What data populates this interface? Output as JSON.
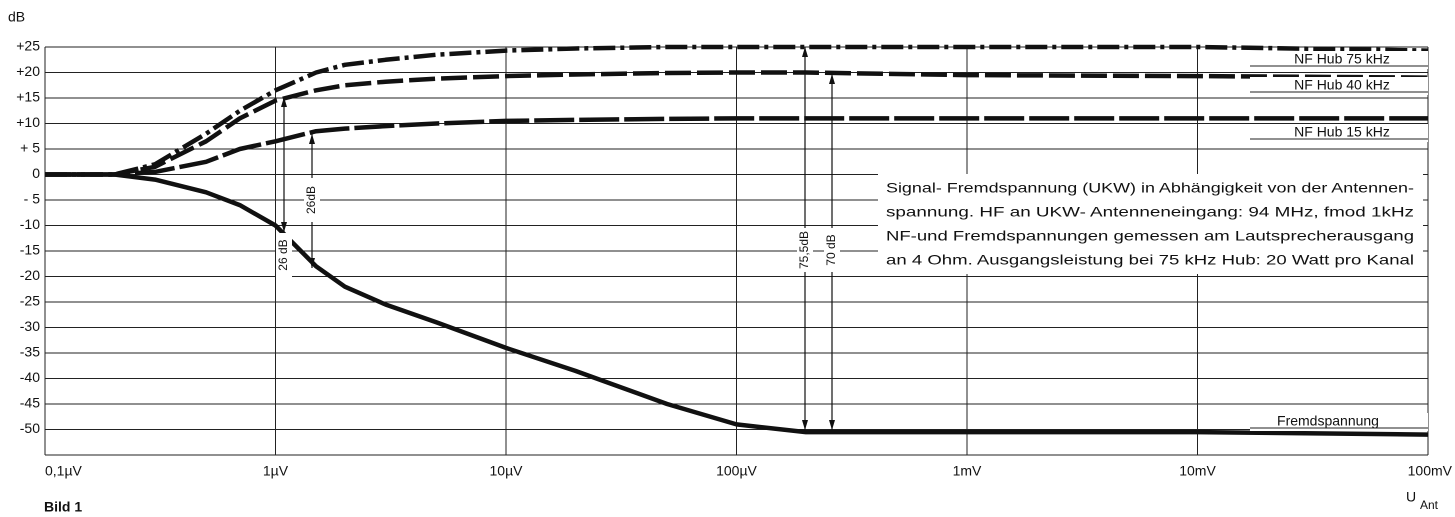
{
  "chart_data": {
    "type": "line",
    "ylabel": "dB",
    "xlabel": "U",
    "xlabel_sub": "Ant",
    "caption": "Bild 1",
    "log_x": true,
    "grid": true,
    "xlim": [
      0.1,
      100000
    ],
    "xticks": [
      {
        "value": 0.1,
        "label": "0,1µV"
      },
      {
        "value": 1,
        "label": "1µV"
      },
      {
        "value": 10,
        "label": "10µV"
      },
      {
        "value": 100,
        "label": "100µV"
      },
      {
        "value": 1000,
        "label": "1mV"
      },
      {
        "value": 10000,
        "label": "10mV"
      },
      {
        "value": 100000,
        "label": "100mV"
      }
    ],
    "ylim": [
      -55,
      25
    ],
    "yticks": [
      {
        "value": 25,
        "label": "+25"
      },
      {
        "value": 20,
        "label": "+20"
      },
      {
        "value": 15,
        "label": "+15"
      },
      {
        "value": 10,
        "label": "+10"
      },
      {
        "value": 5,
        "label": "+ 5"
      },
      0,
      {
        "value": -5,
        "label": "- 5"
      },
      -10,
      -15,
      -20,
      -25,
      -30,
      -35,
      -40,
      -45,
      -50
    ],
    "x": [
      0.1,
      0.2,
      0.3,
      0.5,
      0.7,
      1,
      1.5,
      2,
      3,
      5,
      10,
      20,
      50,
      100,
      200,
      1000,
      10000,
      100000
    ],
    "series": [
      {
        "name": "NF Hub 75 kHz",
        "color": "#111111",
        "dash": "dashdot",
        "values": [
          0,
          0,
          2,
          8,
          12.5,
          16.5,
          20,
          21.5,
          22.5,
          23.5,
          24.3,
          24.7,
          25,
          25,
          25,
          25,
          25,
          24.3
        ]
      },
      {
        "name": "NF Hub 40 kHz",
        "color": "#111111",
        "dash": "dash",
        "values": [
          0,
          0,
          1.5,
          6.5,
          11,
          14.5,
          16.5,
          17.5,
          18.2,
          18.8,
          19.3,
          19.6,
          19.9,
          20,
          20,
          19.5,
          19.3,
          19
        ]
      },
      {
        "name": "NF Hub 15 kHz",
        "color": "#111111",
        "dash": "longdash",
        "values": [
          0,
          0,
          0.5,
          2.5,
          5,
          6.5,
          8.5,
          9,
          9.5,
          10,
          10.5,
          10.7,
          10.9,
          11,
          11,
          11,
          11,
          11
        ]
      },
      {
        "name": "Fremdspannung",
        "color": "#111111",
        "dash": "solid",
        "values": [
          0,
          0,
          -1,
          -3.5,
          -6,
          -10,
          -18,
          -22,
          -25.5,
          -29,
          -34,
          -38.5,
          -45,
          -49,
          -50.5,
          -50.5,
          -50.5,
          -51
        ]
      }
    ],
    "annotation_lines": [
      "Signal- Fremdspannung (UKW) in Abhängigkeit von der Antennen-",
      "spannung. HF an UKW- Antenneneingang: 94 MHz, fmod 1kHz",
      "NF-und Fremdspannungen gemessen am Lautsprecherausgang",
      "an 4 Ohm. Ausgangsleistung bei 75 kHz Hub: 20 Watt pro Kanal"
    ],
    "dimensions": [
      "26 dB",
      "26dB",
      "75,5dB",
      "70 dB"
    ]
  }
}
